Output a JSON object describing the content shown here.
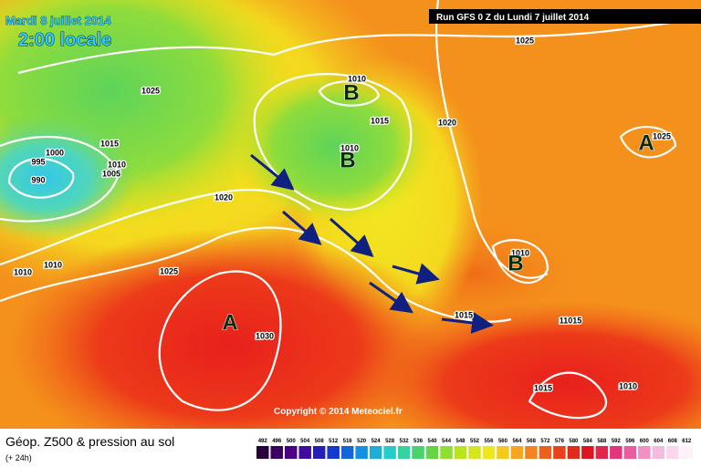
{
  "header": {
    "date": "Mardi 8 juillet 2014",
    "time": "2:00 locale",
    "run": "Run GFS 0 Z du Lundi 7 juillet 2014"
  },
  "pressure_centers": [
    "B",
    "B",
    "A",
    "B",
    "A"
  ],
  "isobar_labels": [
    "1025",
    "1010",
    "1015",
    "1020",
    "1025",
    "1025",
    "1010",
    "1000",
    "995",
    "990",
    "1015",
    "1010",
    "1005",
    "1020",
    "1010",
    "1010",
    "1025",
    "1030",
    "1010",
    "1015",
    "11015",
    "1015",
    "1010"
  ],
  "copyright": "Copyright © 2014 Meteociel.fr",
  "legend": {
    "title": "Géop. Z500 & pression au sol",
    "subtitle": "(+ 24h)",
    "scale": [
      492,
      496,
      500,
      504,
      508,
      512,
      516,
      520,
      524,
      528,
      532,
      536,
      540,
      544,
      548,
      552,
      556,
      560,
      564,
      568,
      572,
      576,
      580,
      584,
      588,
      592,
      596,
      600,
      604,
      608,
      612
    ]
  }
}
